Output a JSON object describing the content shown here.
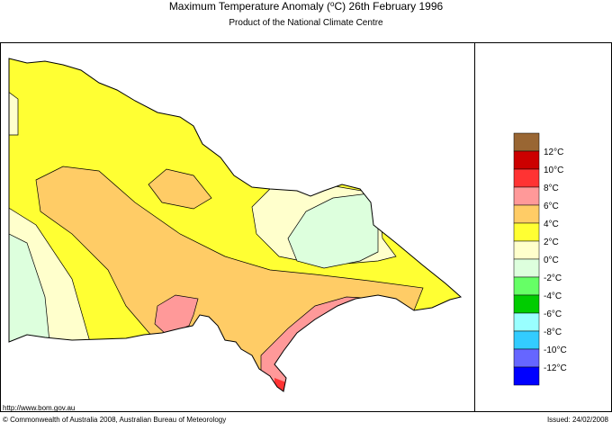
{
  "header": {
    "title_prefix": "Maximum Temperature Anomaly (",
    "title_sup": "o",
    "title_suffix": "C)  26th February 1996",
    "subtitle": "Product of the National Climate Centre"
  },
  "legend": {
    "swatches": [
      "#996633",
      "#cc0000",
      "#ff3333",
      "#ff9999",
      "#ffcc66",
      "#ffff33",
      "#ffffcc",
      "#ddffdd",
      "#66ff66",
      "#00cc00",
      "#99ffff",
      "#33ccff",
      "#6666ff",
      "#0000ff"
    ],
    "labels": [
      "12°C",
      "10°C",
      "8°C",
      "6°C",
      "4°C",
      "2°C",
      "0°C",
      "-2°C",
      "-4°C",
      "-6°C",
      "-8°C",
      "-10°C",
      "-12°C"
    ]
  },
  "footer": {
    "url": "http://www.bom.gov.au",
    "copyright": "© Commonwealth of Australia 2008, Australian Bureau of Meteorology",
    "issued": "Issued: 24/02/2008"
  }
}
